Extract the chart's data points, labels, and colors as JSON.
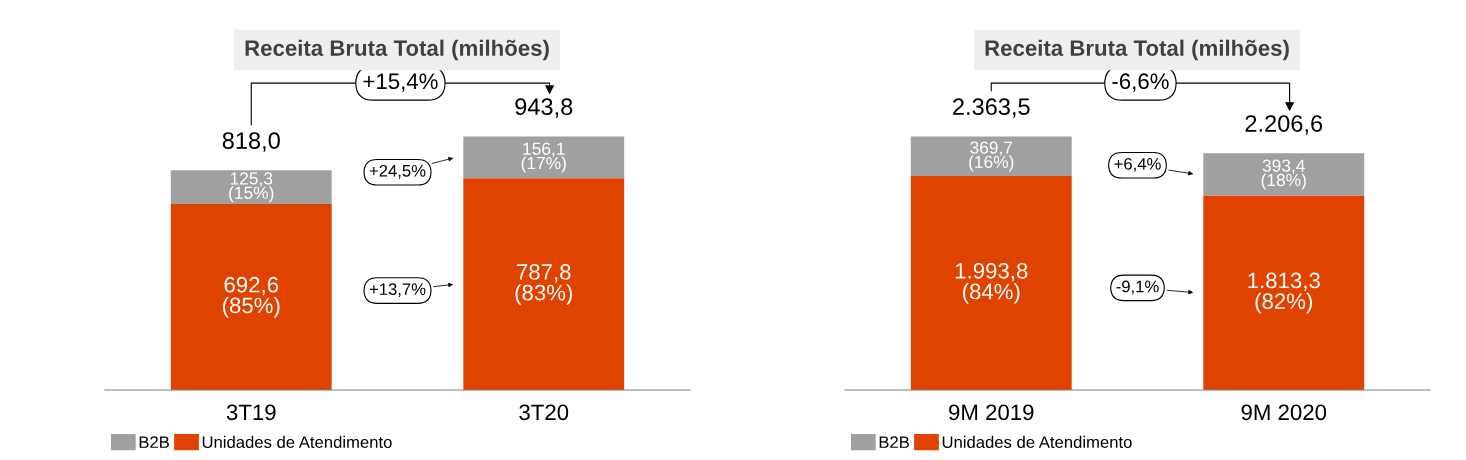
{
  "chart_data": [
    {
      "type": "bar",
      "title": "Receita Bruta Total (milhões)",
      "categories": [
        "3T19",
        "3T20"
      ],
      "stacked": true,
      "legend": "bottom left",
      "series": [
        {
          "name": "Unidades de Atendimento",
          "color": "#e04300",
          "values": [
            692.6,
            787.8
          ],
          "value_labels": [
            "692,6\n(85%)",
            "787,8\n(83%)"
          ]
        },
        {
          "name": "B2B",
          "color": "#a0a0a0",
          "values": [
            125.3,
            156.1
          ],
          "value_labels": [
            "125,3\n(15%)",
            "156,1\n(17%)"
          ]
        }
      ],
      "totals": [
        "818,0",
        "943,8"
      ],
      "annotations": [
        "+15,4%",
        "+24,5%",
        "+13,7%"
      ]
    },
    {
      "type": "bar",
      "title": "Receita Bruta Total (milhões)",
      "categories": [
        "9M 2019",
        "9M 2020"
      ],
      "stacked": true,
      "legend": "bottom left",
      "series": [
        {
          "name": "Unidades de Atendimento",
          "color": "#e04300",
          "values": [
            1993.8,
            1813.3
          ],
          "value_labels": [
            "1.993,8\n(84%)",
            "1.813,3\n(82%)"
          ]
        },
        {
          "name": "B2B",
          "color": "#a0a0a0",
          "values": [
            369.7,
            393.4
          ],
          "value_labels": [
            "369,7\n(16%)",
            "393,4\n(18%)"
          ]
        }
      ],
      "totals": [
        "2.363,5",
        "2.206,6"
      ],
      "annotations": [
        "-6,6%",
        "+6,4%",
        "-9,1%"
      ]
    }
  ]
}
